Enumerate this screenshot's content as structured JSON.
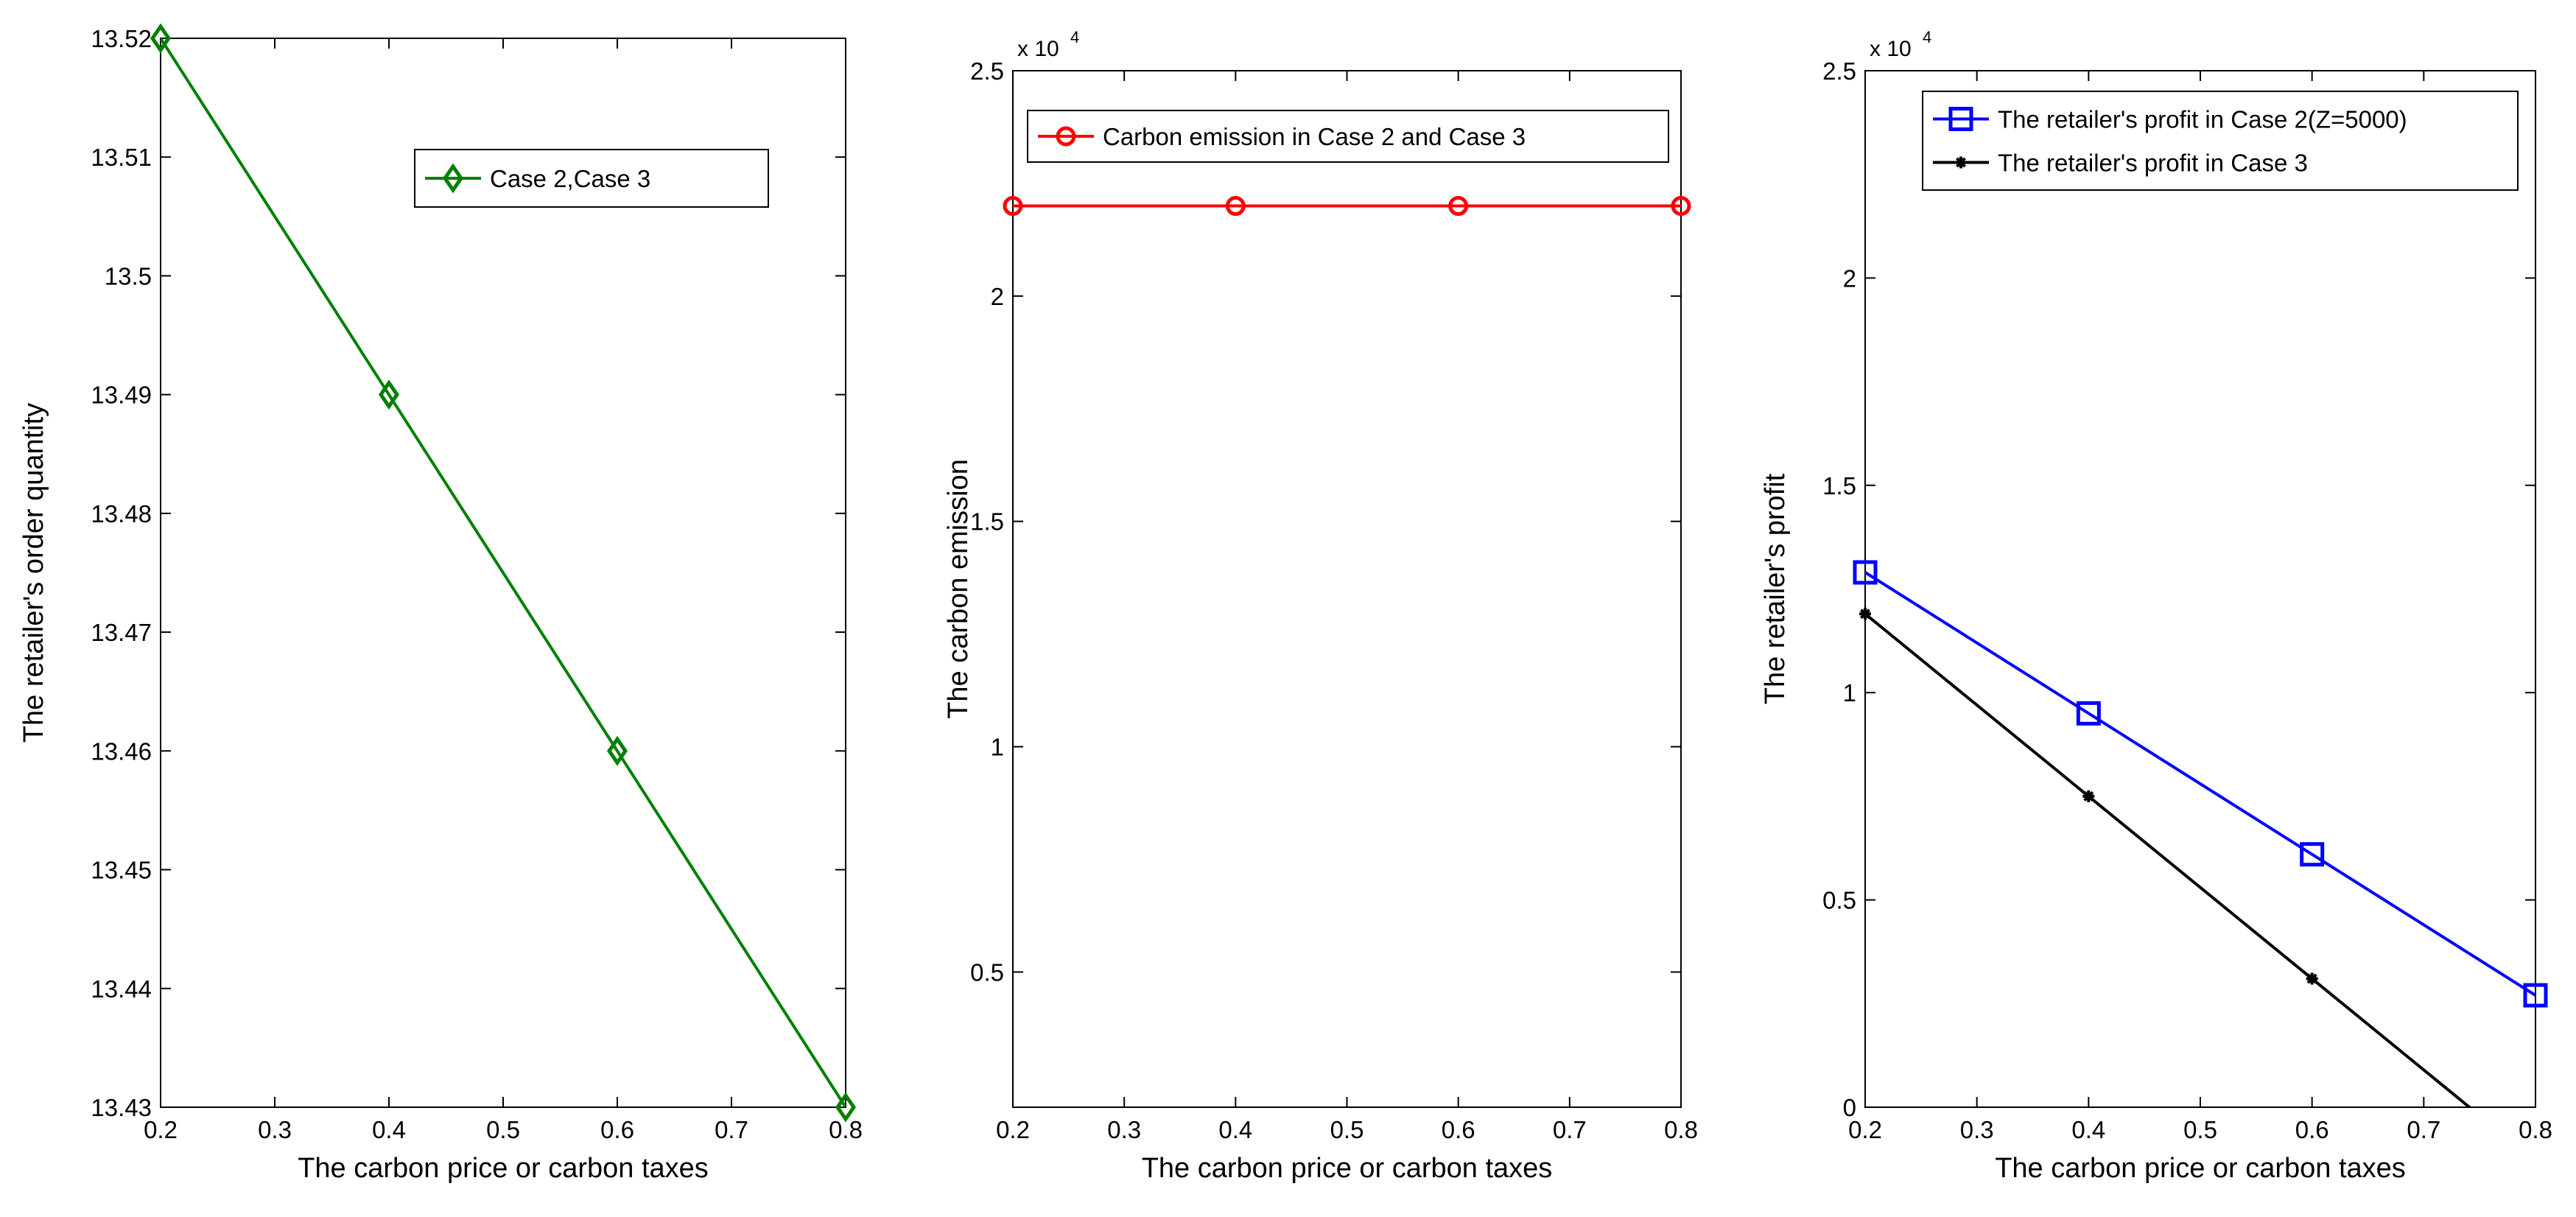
{
  "chart_data": [
    {
      "type": "line",
      "xlabel": "The carbon price or carbon taxes",
      "ylabel": "The retailer's order quantity",
      "xlim": [
        0.2,
        0.8
      ],
      "ylim": [
        13.43,
        13.52
      ],
      "xticks": [
        0.2,
        0.3,
        0.4,
        0.5,
        0.6,
        0.7,
        0.8
      ],
      "xtick_labels": [
        "0.2",
        "0.3",
        "0.4",
        "0.5",
        "0.6",
        "0.7",
        "0.8"
      ],
      "yticks": [
        13.43,
        13.44,
        13.45,
        13.46,
        13.47,
        13.48,
        13.49,
        13.5,
        13.51,
        13.52
      ],
      "ytick_labels": [
        "13.43",
        "13.44",
        "13.45",
        "13.46",
        "13.47",
        "13.48",
        "13.49",
        "13.5",
        "13.51",
        "13.52"
      ],
      "exponent_label": "",
      "legend_position": "top-right",
      "grid": false,
      "series": [
        {
          "name": "Case 2,Case 3",
          "color": "#008000",
          "marker": "diamond",
          "x": [
            0.2,
            0.4,
            0.6,
            0.8
          ],
          "y": [
            13.52,
            13.49,
            13.46,
            13.43
          ]
        }
      ]
    },
    {
      "type": "line",
      "xlabel": "The carbon price or carbon taxes",
      "ylabel": "The carbon emission",
      "xlim": [
        0.2,
        0.8
      ],
      "ylim": [
        2000,
        25000
      ],
      "xticks": [
        0.2,
        0.3,
        0.4,
        0.5,
        0.6,
        0.7,
        0.8
      ],
      "xtick_labels": [
        "0.2",
        "0.3",
        "0.4",
        "0.5",
        "0.6",
        "0.7",
        "0.8"
      ],
      "yticks": [
        5000,
        10000,
        15000,
        20000,
        25000
      ],
      "ytick_labels": [
        "0.5",
        "1",
        "1.5",
        "2",
        "2.5"
      ],
      "exponent_label": "x 10",
      "exponent_power": "4",
      "legend_position": "top",
      "grid": false,
      "series": [
        {
          "name": "Carbon emission in Case 2 and Case 3",
          "color": "#ff0000",
          "marker": "circle",
          "x": [
            0.2,
            0.4,
            0.6,
            0.8
          ],
          "y": [
            22000,
            22000,
            22000,
            22000
          ]
        }
      ]
    },
    {
      "type": "line",
      "xlabel": "The carbon price or carbon taxes",
      "ylabel": "The retailer's profit",
      "xlim": [
        0.2,
        0.8
      ],
      "ylim": [
        0,
        25000
      ],
      "xticks": [
        0.2,
        0.3,
        0.4,
        0.5,
        0.6,
        0.7,
        0.8
      ],
      "xtick_labels": [
        "0.2",
        "0.3",
        "0.4",
        "0.5",
        "0.6",
        "0.7",
        "0.8"
      ],
      "yticks": [
        0,
        5000,
        10000,
        15000,
        20000,
        25000
      ],
      "ytick_labels": [
        "0",
        "0.5",
        "1",
        "1.5",
        "2",
        "2.5"
      ],
      "exponent_label": "x 10",
      "exponent_power": "4",
      "legend_position": "top",
      "grid": false,
      "series": [
        {
          "name": "The retailer's profit in Case 2(Z=5000)",
          "color": "#0000ff",
          "marker": "square",
          "x": [
            0.2,
            0.4,
            0.6,
            0.8
          ],
          "y": [
            12900,
            9500,
            6100,
            2700
          ]
        },
        {
          "name": "The retailer's profit in Case 3",
          "color": "#000000",
          "marker": "star",
          "x": [
            0.2,
            0.4,
            0.6,
            0.8
          ],
          "y": [
            11900,
            7500,
            3100,
            -1300
          ]
        }
      ]
    }
  ]
}
